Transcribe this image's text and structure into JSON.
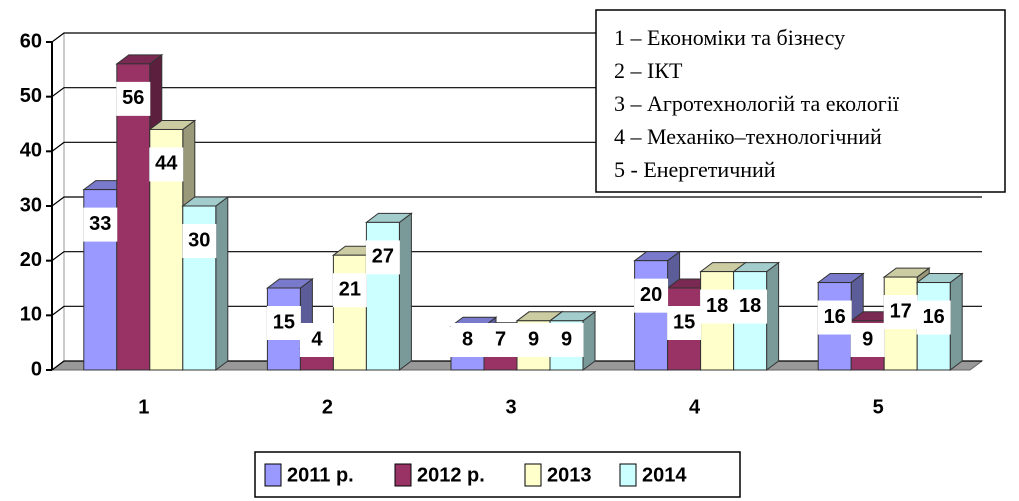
{
  "chart_data": {
    "type": "bar3d",
    "categories": [
      "1",
      "2",
      "3",
      "4",
      "5"
    ],
    "series": [
      {
        "name": "2011 р.",
        "color": "#9999ff",
        "values": [
          33,
          15,
          8,
          20,
          16
        ]
      },
      {
        "name": "2012 р.",
        "color": "#993366",
        "values": [
          56,
          4,
          7,
          15,
          9
        ]
      },
      {
        "name": "2013",
        "color": "#ffffcc",
        "values": [
          44,
          21,
          9,
          18,
          17
        ]
      },
      {
        "name": "2014",
        "color": "#ccffff",
        "values": [
          30,
          27,
          9,
          18,
          16
        ]
      }
    ],
    "ylim": [
      0,
      60
    ],
    "yticks": [
      0,
      10,
      20,
      30,
      40,
      50,
      60
    ],
    "grid": true,
    "legend": "bottom",
    "annotations": [
      "1 – Економіки та бізнесу",
      "2 – ІКТ",
      "3 – Агротехнологій та екології",
      "4 – Механіко–технологічний",
      "5 - Енергетичний"
    ]
  }
}
